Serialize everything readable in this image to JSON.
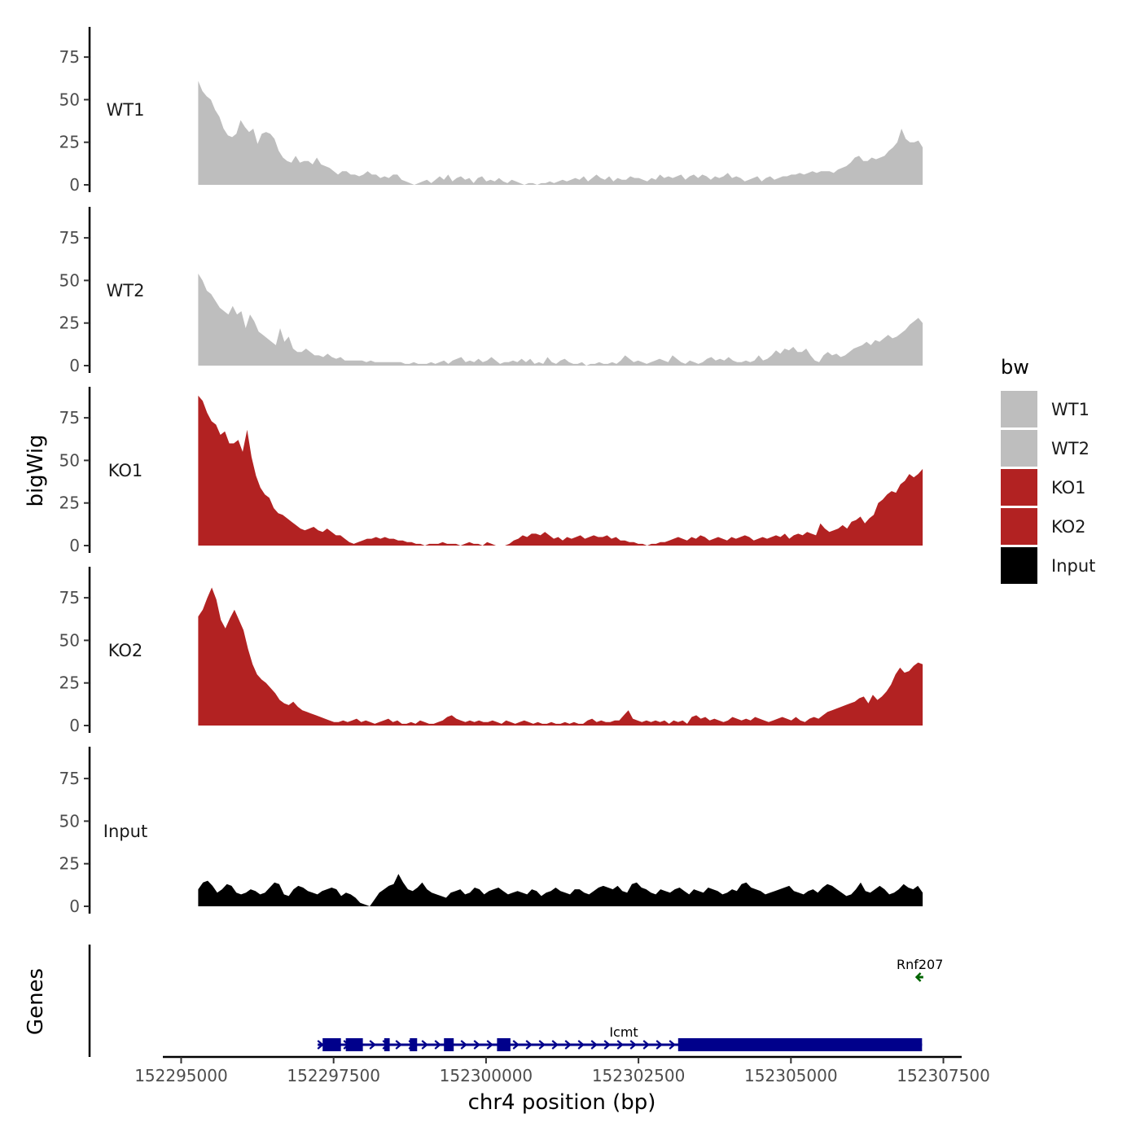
{
  "chart_data": {
    "type": "area",
    "ylabel": "bigWig",
    "xlabel": "chr4 position (bp)",
    "gene_track_label": "Genes",
    "x_range": [
      152294700,
      152307800
    ],
    "x_ticks": [
      {
        "value": 152295000,
        "label": "152295000"
      },
      {
        "value": 152297500,
        "label": "152297500"
      },
      {
        "value": 152300000,
        "label": "152300000"
      },
      {
        "value": 152302500,
        "label": "152302500"
      },
      {
        "value": 152305000,
        "label": "152305000"
      },
      {
        "value": 152307500,
        "label": "152307500"
      }
    ],
    "y_range": [
      0,
      95
    ],
    "y_ticks": [
      {
        "value": 0,
        "label": "0"
      },
      {
        "value": 25,
        "label": "25"
      },
      {
        "value": 50,
        "label": "50"
      },
      {
        "value": 75,
        "label": "75"
      }
    ],
    "series_x": [
      152295280,
      152307160
    ],
    "series": [
      {
        "name": "WT1",
        "color": "#BEBEBE",
        "values": [
          61,
          55,
          52,
          50,
          44,
          40,
          33,
          29,
          28,
          30,
          38,
          34,
          31,
          33,
          24,
          30,
          31,
          30,
          27,
          20,
          16,
          14,
          13,
          17,
          13,
          14,
          14,
          12,
          16,
          12,
          11,
          10,
          8,
          6,
          8,
          8,
          6,
          6,
          5,
          6,
          8,
          6,
          6,
          4,
          5,
          4,
          6,
          6,
          3,
          2,
          1,
          0,
          1,
          2,
          3,
          1,
          3,
          5,
          3,
          6,
          2,
          4,
          5,
          3,
          4,
          1,
          4,
          5,
          2,
          3,
          2,
          4,
          2,
          1,
          3,
          2,
          1,
          0,
          1,
          1,
          0,
          1,
          1,
          2,
          1,
          2,
          3,
          2,
          3,
          4,
          3,
          5,
          2,
          4,
          6,
          4,
          3,
          5,
          2,
          4,
          3,
          3,
          5,
          4,
          4,
          3,
          2,
          4,
          3,
          6,
          4,
          5,
          4,
          5,
          6,
          3,
          5,
          6,
          4,
          6,
          5,
          3,
          5,
          4,
          5,
          7,
          4,
          5,
          4,
          2,
          3,
          4,
          5,
          2,
          4,
          5,
          3,
          4,
          5,
          5,
          6,
          6,
          7,
          6,
          7,
          8,
          7,
          8,
          8,
          8,
          7,
          9,
          10,
          11,
          13,
          16,
          17,
          14,
          14,
          16,
          15,
          16,
          17,
          20,
          22,
          25,
          33,
          27,
          25,
          25,
          26,
          22
        ]
      },
      {
        "name": "WT2",
        "color": "#BEBEBE",
        "values": [
          54,
          50,
          44,
          42,
          38,
          34,
          32,
          30,
          35,
          30,
          32,
          22,
          30,
          26,
          20,
          18,
          16,
          14,
          12,
          22,
          14,
          17,
          10,
          8,
          8,
          10,
          8,
          6,
          6,
          5,
          7,
          5,
          4,
          5,
          3,
          3,
          3,
          3,
          3,
          2,
          3,
          2,
          2,
          2,
          2,
          2,
          2,
          2,
          1,
          1,
          2,
          1,
          1,
          1,
          2,
          1,
          2,
          3,
          1,
          3,
          4,
          5,
          2,
          3,
          2,
          4,
          2,
          3,
          5,
          3,
          1,
          2,
          2,
          3,
          2,
          4,
          2,
          4,
          1,
          2,
          1,
          5,
          2,
          1,
          3,
          4,
          2,
          1,
          1,
          2,
          0,
          1,
          1,
          2,
          1,
          1,
          2,
          1,
          3,
          6,
          4,
          2,
          3,
          2,
          1,
          2,
          3,
          4,
          3,
          2,
          6,
          4,
          2,
          1,
          3,
          2,
          1,
          2,
          4,
          5,
          3,
          4,
          3,
          5,
          3,
          2,
          2,
          3,
          2,
          3,
          6,
          3,
          4,
          6,
          9,
          7,
          10,
          9,
          11,
          8,
          8,
          10,
          6,
          3,
          2,
          6,
          8,
          6,
          7,
          5,
          6,
          8,
          10,
          11,
          12,
          14,
          12,
          15,
          14,
          16,
          18,
          16,
          17,
          19,
          21,
          24,
          26,
          28,
          25
        ]
      },
      {
        "name": "KO1",
        "color": "#B22222",
        "values": [
          88,
          85,
          78,
          73,
          71,
          65,
          67,
          60,
          60,
          62,
          55,
          68,
          52,
          41,
          34,
          30,
          28,
          22,
          19,
          18,
          16,
          14,
          12,
          10,
          9,
          10,
          11,
          9,
          8,
          10,
          8,
          6,
          6,
          4,
          2,
          1,
          2,
          3,
          4,
          4,
          5,
          4,
          5,
          4,
          4,
          3,
          3,
          2,
          2,
          1,
          1,
          0,
          1,
          1,
          1,
          2,
          1,
          1,
          1,
          0,
          1,
          2,
          1,
          1,
          0,
          2,
          1,
          0,
          0,
          0,
          1,
          3,
          4,
          6,
          5,
          7,
          7,
          6,
          8,
          6,
          4,
          5,
          3,
          5,
          4,
          5,
          6,
          4,
          5,
          6,
          5,
          5,
          6,
          4,
          5,
          3,
          3,
          2,
          2,
          1,
          1,
          0,
          1,
          1,
          2,
          2,
          3,
          4,
          5,
          4,
          3,
          5,
          4,
          6,
          5,
          3,
          4,
          5,
          4,
          3,
          5,
          4,
          5,
          6,
          5,
          3,
          4,
          5,
          4,
          5,
          6,
          5,
          7,
          4,
          6,
          7,
          6,
          8,
          7,
          6,
          13,
          10,
          8,
          9,
          10,
          12,
          10,
          14,
          15,
          17,
          13,
          16,
          18,
          25,
          27,
          30,
          32,
          31,
          36,
          38,
          42,
          40,
          42,
          45
        ]
      },
      {
        "name": "KO2",
        "color": "#B22222",
        "values": [
          64,
          68,
          75,
          81,
          74,
          62,
          57,
          63,
          68,
          62,
          56,
          45,
          36,
          30,
          27,
          25,
          22,
          19,
          15,
          13,
          12,
          14,
          11,
          9,
          8,
          7,
          6,
          5,
          4,
          3,
          2,
          2,
          3,
          2,
          3,
          4,
          2,
          3,
          2,
          1,
          2,
          3,
          4,
          2,
          3,
          1,
          1,
          2,
          1,
          3,
          2,
          1,
          1,
          2,
          3,
          5,
          6,
          4,
          3,
          2,
          3,
          2,
          3,
          2,
          2,
          3,
          2,
          1,
          3,
          2,
          1,
          2,
          3,
          2,
          1,
          2,
          1,
          1,
          2,
          1,
          1,
          2,
          1,
          2,
          1,
          1,
          3,
          4,
          2,
          3,
          2,
          2,
          3,
          3,
          6,
          9,
          4,
          3,
          2,
          3,
          2,
          3,
          2,
          3,
          1,
          3,
          2,
          3,
          1,
          5,
          6,
          4,
          5,
          3,
          4,
          3,
          2,
          3,
          5,
          4,
          3,
          4,
          3,
          5,
          4,
          3,
          2,
          3,
          4,
          5,
          4,
          3,
          5,
          3,
          2,
          4,
          5,
          4,
          6,
          8,
          9,
          10,
          11,
          12,
          13,
          14,
          16,
          17,
          13,
          18,
          15,
          17,
          20,
          24,
          30,
          34,
          31,
          32,
          35,
          37,
          36
        ]
      },
      {
        "name": "Input",
        "color": "#000000",
        "values": [
          10,
          14,
          15,
          12,
          8,
          10,
          13,
          12,
          8,
          7,
          8,
          10,
          9,
          7,
          8,
          11,
          14,
          13,
          7,
          6,
          10,
          12,
          11,
          9,
          8,
          7,
          9,
          10,
          11,
          10,
          6,
          8,
          7,
          5,
          2,
          1,
          0,
          4,
          8,
          10,
          12,
          13,
          19,
          14,
          10,
          9,
          11,
          14,
          10,
          8,
          7,
          6,
          5,
          8,
          9,
          10,
          7,
          8,
          11,
          10,
          7,
          9,
          10,
          11,
          9,
          7,
          8,
          9,
          8,
          7,
          10,
          9,
          6,
          8,
          9,
          11,
          9,
          8,
          7,
          10,
          10,
          8,
          7,
          9,
          11,
          12,
          11,
          10,
          12,
          9,
          8,
          13,
          14,
          11,
          10,
          8,
          7,
          10,
          9,
          8,
          10,
          11,
          9,
          7,
          10,
          9,
          8,
          11,
          10,
          9,
          7,
          8,
          10,
          9,
          13,
          14,
          11,
          10,
          9,
          7,
          8,
          9,
          10,
          11,
          12,
          9,
          8,
          7,
          9,
          10,
          8,
          11,
          13,
          12,
          10,
          8,
          6,
          7,
          10,
          14,
          9,
          8,
          10,
          12,
          10,
          7,
          8,
          10,
          13,
          11,
          10,
          12,
          8
        ]
      }
    ],
    "legend": {
      "title": "bw",
      "position": "right",
      "entries": [
        {
          "label": "WT1",
          "color": "#BEBEBE"
        },
        {
          "label": "WT2",
          "color": "#BEBEBE"
        },
        {
          "label": "KO1",
          "color": "#B22222"
        },
        {
          "label": "KO2",
          "color": "#B22222"
        },
        {
          "label": "Input",
          "color": "#000000"
        }
      ]
    },
    "genes": [
      {
        "name": "Icmt",
        "strand": "+",
        "color": "#00008B",
        "start": 152297240,
        "end": 152307150,
        "exons": [
          [
            152297320,
            152297620
          ],
          [
            152297700,
            152297980
          ],
          [
            152298330,
            152298420
          ],
          [
            152298750,
            152298870
          ],
          [
            152299310,
            152299470
          ],
          [
            152300180,
            152300400
          ],
          [
            152303150,
            152307150
          ]
        ]
      },
      {
        "name": "Rnf207",
        "strand": "-",
        "color": "#006400",
        "start": 152307060,
        "end": 152307170,
        "exons": []
      }
    ]
  }
}
